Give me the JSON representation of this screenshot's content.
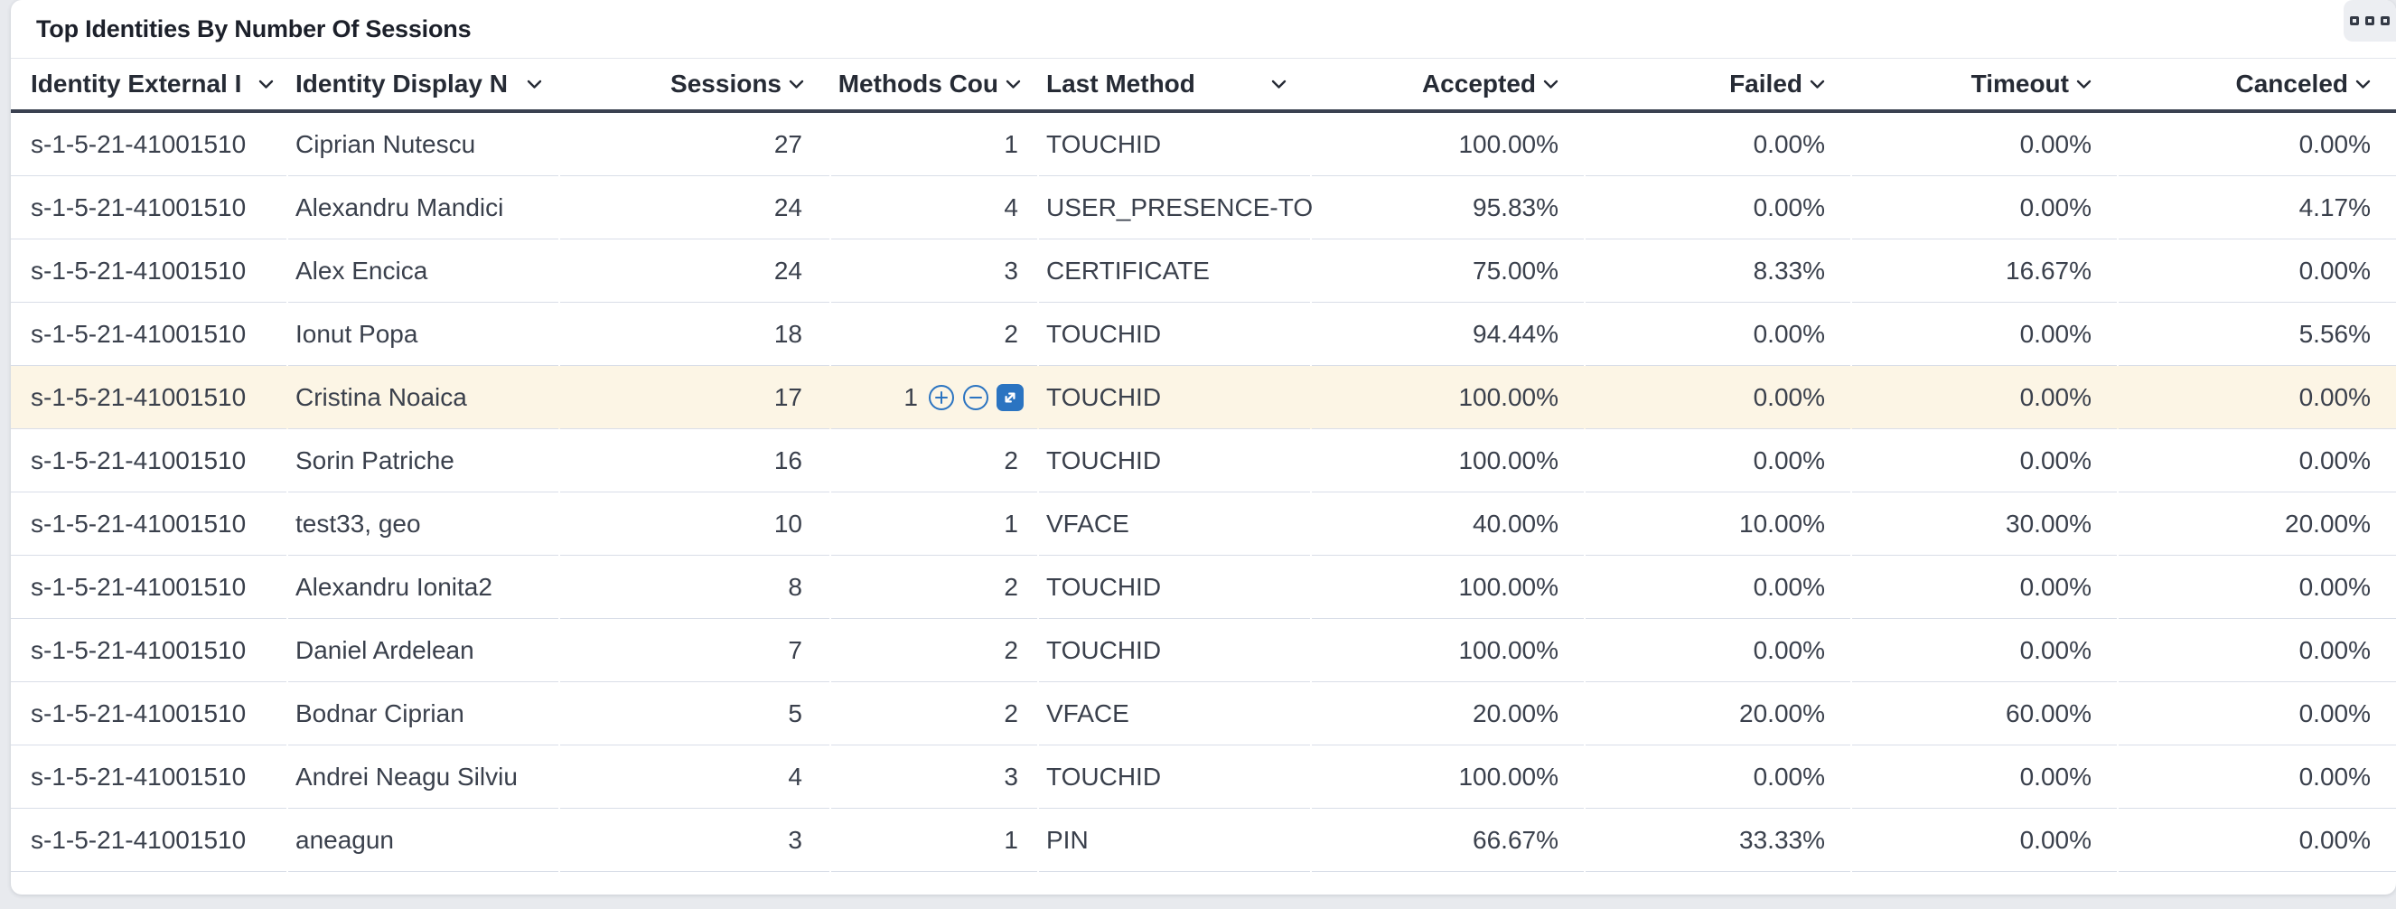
{
  "panel": {
    "title": "Top Identities By Number Of Sessions",
    "menu_icon": "squares-menu-icon"
  },
  "table": {
    "columns": [
      {
        "key": "identity-external-id",
        "label": "Identity External I",
        "align": "left"
      },
      {
        "key": "identity-display-name",
        "label": "Identity Display N",
        "align": "left"
      },
      {
        "key": "sessions",
        "label": "Sessions",
        "align": "right"
      },
      {
        "key": "methods-count",
        "label": "Methods Cou",
        "align": "right"
      },
      {
        "key": "last-method",
        "label": "Last Method",
        "align": "left"
      },
      {
        "key": "accepted",
        "label": "Accepted",
        "align": "right"
      },
      {
        "key": "failed",
        "label": "Failed",
        "align": "right"
      },
      {
        "key": "timeout",
        "label": "Timeout",
        "align": "right"
      },
      {
        "key": "canceled",
        "label": "Canceled",
        "align": "right"
      }
    ],
    "rows": [
      {
        "cells": [
          "s-1-5-21-41001510",
          "Ciprian Nutescu",
          "27",
          "1",
          "TOUCHID",
          "100.00%",
          "0.00%",
          "0.00%",
          "0.00%"
        ]
      },
      {
        "cells": [
          "s-1-5-21-41001510",
          "Alexandru Mandici",
          "24",
          "4",
          "USER_PRESENCE-TO",
          "95.83%",
          "0.00%",
          "0.00%",
          "4.17%"
        ]
      },
      {
        "cells": [
          "s-1-5-21-41001510",
          "Alex Encica",
          "24",
          "3",
          "CERTIFICATE",
          "75.00%",
          "8.33%",
          "16.67%",
          "0.00%"
        ]
      },
      {
        "cells": [
          "s-1-5-21-41001510",
          "Ionut Popa",
          "18",
          "2",
          "TOUCHID",
          "94.44%",
          "0.00%",
          "0.00%",
          "5.56%"
        ]
      },
      {
        "cells": [
          "s-1-5-21-41001510",
          "Cristina Noaica",
          "17",
          "1",
          "TOUCHID",
          "100.00%",
          "0.00%",
          "0.00%",
          "0.00%"
        ],
        "highlighted": true,
        "has_actions": true
      },
      {
        "cells": [
          "s-1-5-21-41001510",
          "Sorin Patriche",
          "16",
          "2",
          "TOUCHID",
          "100.00%",
          "0.00%",
          "0.00%",
          "0.00%"
        ]
      },
      {
        "cells": [
          "s-1-5-21-41001510",
          "test33, geo",
          "10",
          "1",
          "VFACE",
          "40.00%",
          "10.00%",
          "30.00%",
          "20.00%"
        ]
      },
      {
        "cells": [
          "s-1-5-21-41001510",
          "Alexandru Ionita2",
          "8",
          "2",
          "TOUCHID",
          "100.00%",
          "0.00%",
          "0.00%",
          "0.00%"
        ]
      },
      {
        "cells": [
          "s-1-5-21-41001510",
          "Daniel Ardelean",
          "7",
          "2",
          "TOUCHID",
          "100.00%",
          "0.00%",
          "0.00%",
          "0.00%"
        ]
      },
      {
        "cells": [
          "s-1-5-21-41001510",
          "Bodnar Ciprian",
          "5",
          "2",
          "VFACE",
          "20.00%",
          "20.00%",
          "60.00%",
          "0.00%"
        ]
      },
      {
        "cells": [
          "s-1-5-21-41001510",
          "Andrei Neagu Silviu",
          "4",
          "3",
          "TOUCHID",
          "100.00%",
          "0.00%",
          "0.00%",
          "0.00%"
        ]
      },
      {
        "cells": [
          "s-1-5-21-41001510",
          "aneagun",
          "3",
          "1",
          "PIN",
          "66.67%",
          "33.33%",
          "0.00%",
          "0.00%"
        ]
      }
    ],
    "row_actions": [
      {
        "name": "filter-for-value",
        "icon": "plus-circle-icon"
      },
      {
        "name": "filter-out-value",
        "icon": "minus-circle-icon"
      },
      {
        "name": "expand-cell",
        "icon": "expand-icon"
      }
    ]
  },
  "colors": {
    "accent_blue": "#2b74c1",
    "highlight_row_bg": "#fcf5e5",
    "header_rule": "#3a4150",
    "row_divider": "#d9dee8",
    "title_divider": "#e3e6ec",
    "page_bg": "#e8eaee",
    "panel_bg": "#ffffff",
    "text": "#3a404c",
    "header_text": "#262b35",
    "title_text": "#1c202a",
    "menu_btn_bg": "#eceef2",
    "icon_dark": "#343a46"
  }
}
